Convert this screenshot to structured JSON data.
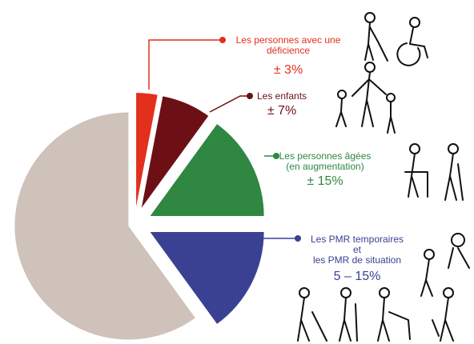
{
  "chart_data": {
    "type": "pie",
    "categories": [
      "Les personnes avec une\ndéficience",
      "Les enfants",
      "Les personnes âgées\n(en augmentation)",
      "Les PMR temporaires\net\nles PMR de situation",
      null
    ],
    "values": [
      3,
      7,
      15,
      15,
      60
    ],
    "value_labels": [
      "± 3%",
      "± 7%",
      "± 15%",
      "5 – 15%",
      null
    ],
    "colors": [
      "#e2301c",
      "#6d1015",
      "#2f8741",
      "#3b4192",
      "#cfc2ba"
    ]
  }
}
